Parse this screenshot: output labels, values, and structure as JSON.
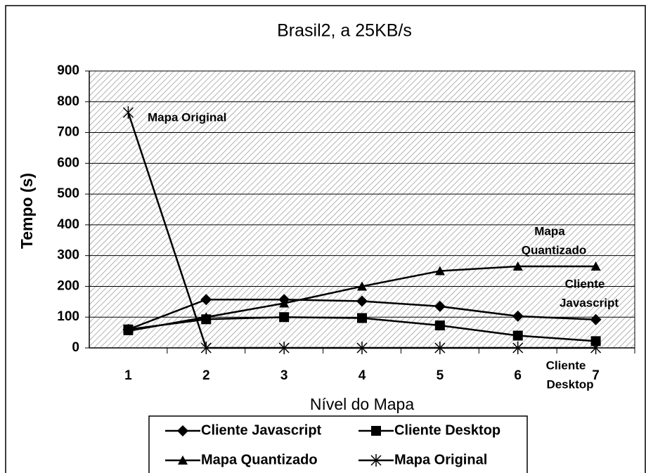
{
  "chart_data": {
    "type": "line",
    "title": "Brasil2, a 25KB/s",
    "x_label": "Nível do Mapa",
    "y_label": "Tempo (s)",
    "categories": [
      "1",
      "2",
      "3",
      "4",
      "5",
      "6",
      "7"
    ],
    "ylim": [
      0,
      900
    ],
    "yticks": [
      0,
      100,
      200,
      300,
      400,
      500,
      600,
      700,
      800,
      900
    ],
    "grid": true,
    "series": [
      {
        "name": "Cliente Javascript",
        "color": "#000000",
        "marker": "diamond",
        "values": [
          60,
          157,
          157,
          152,
          135,
          103,
          92
        ]
      },
      {
        "name": "Cliente Desktop",
        "color": "#000000",
        "marker": "square",
        "values": [
          60,
          93,
          100,
          97,
          73,
          40,
          22
        ]
      },
      {
        "name": "Mapa Quantizado",
        "color": "#000000",
        "marker": "triangle",
        "values": [
          55,
          100,
          145,
          200,
          250,
          265,
          265
        ]
      },
      {
        "name": "Mapa Original",
        "color": "#000000",
        "marker": "asterisk",
        "values": [
          765,
          0,
          0,
          0,
          0,
          0,
          0
        ]
      }
    ],
    "annotations": [
      {
        "lines": [
          "Mapa Original"
        ]
      },
      {
        "lines": [
          "Mapa",
          "Quantizado"
        ]
      },
      {
        "lines": [
          "Cliente",
          "Javascript"
        ]
      },
      {
        "lines": [
          "Cliente",
          "Desktop"
        ]
      }
    ],
    "legend": "bottom"
  }
}
